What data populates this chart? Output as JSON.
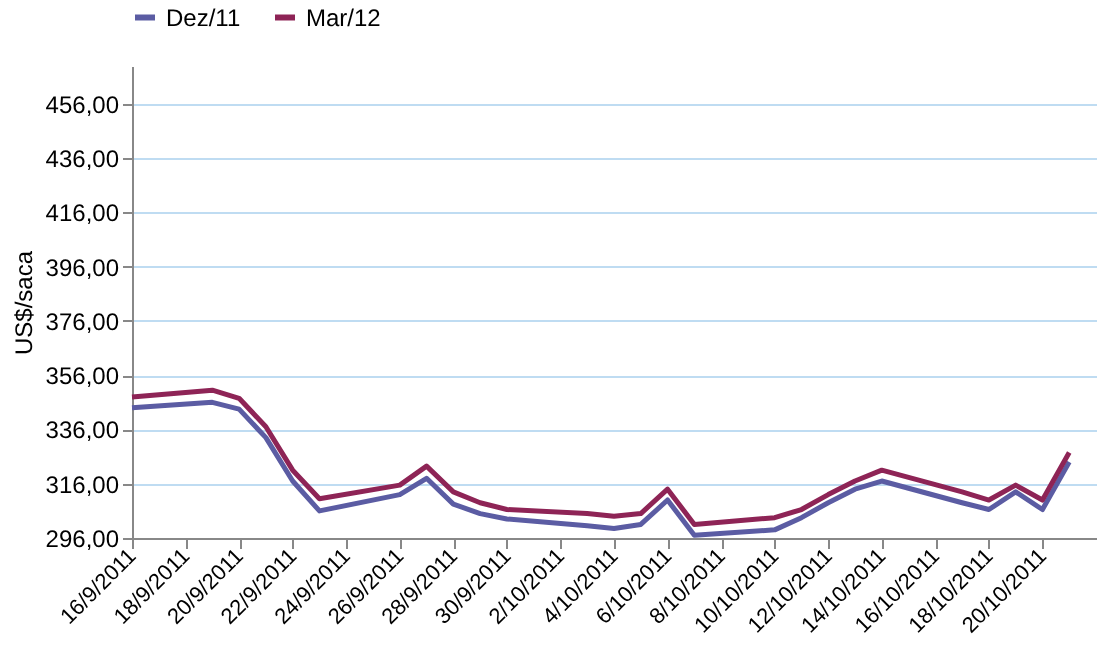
{
  "chart_data": {
    "type": "line",
    "ylabel": "US$/saca",
    "x": [
      "2011-09-16",
      "2011-09-19",
      "2011-09-20",
      "2011-09-21",
      "2011-09-22",
      "2011-09-23",
      "2011-09-26",
      "2011-09-27",
      "2011-09-28",
      "2011-09-29",
      "2011-09-30",
      "2011-10-03",
      "2011-10-04",
      "2011-10-05",
      "2011-10-06",
      "2011-10-07",
      "2011-10-10",
      "2011-10-11",
      "2011-10-12",
      "2011-10-13",
      "2011-10-14",
      "2011-10-17",
      "2011-10-18",
      "2011-10-19",
      "2011-10-20",
      "2011-10-21"
    ],
    "series": [
      {
        "name": "Dez/11",
        "color": "#5b5ca3",
        "values": [
          344,
          346,
          343.5,
          333,
          317,
          306,
          312,
          318,
          308.5,
          305,
          303,
          300.5,
          299.5,
          301,
          310,
          297,
          299,
          303.5,
          309,
          314,
          317,
          309,
          306.5,
          313,
          306.5,
          324
        ]
      },
      {
        "name": "Mar/12",
        "color": "#8e2456",
        "values": [
          348,
          350.5,
          347.5,
          337,
          321,
          310.5,
          315.5,
          322.5,
          313,
          309,
          306.5,
          305,
          304,
          305,
          314,
          301,
          303.5,
          306.5,
          312,
          317,
          321,
          313,
          310,
          315.5,
          310,
          327.5
        ]
      }
    ],
    "xlim": [
      "2011-09-16",
      "2011-10-22"
    ],
    "xticks": [
      {
        "value": "2011-09-16",
        "label": "16/9/2011"
      },
      {
        "value": "2011-09-18",
        "label": "18/9/2011"
      },
      {
        "value": "2011-09-20",
        "label": "20/9/2011"
      },
      {
        "value": "2011-09-22",
        "label": "22/9/2011"
      },
      {
        "value": "2011-09-24",
        "label": "24/9/2011"
      },
      {
        "value": "2011-09-26",
        "label": "26/9/2011"
      },
      {
        "value": "2011-09-28",
        "label": "28/9/2011"
      },
      {
        "value": "2011-09-30",
        "label": "30/9/2011"
      },
      {
        "value": "2011-10-02",
        "label": "2/10/2011"
      },
      {
        "value": "2011-10-04",
        "label": "4/10/2011"
      },
      {
        "value": "2011-10-06",
        "label": "6/10/2011"
      },
      {
        "value": "2011-10-08",
        "label": "8/10/2011"
      },
      {
        "value": "2011-10-10",
        "label": "10/10/2011"
      },
      {
        "value": "2011-10-12",
        "label": "12/10/2011"
      },
      {
        "value": "2011-10-14",
        "label": "14/10/2011"
      },
      {
        "value": "2011-10-16",
        "label": "16/10/2011"
      },
      {
        "value": "2011-10-18",
        "label": "18/10/2011"
      },
      {
        "value": "2011-10-20",
        "label": "20/10/2011"
      }
    ],
    "ylim": [
      296,
      470
    ],
    "yticks": [
      {
        "value": 296,
        "label": "296,00"
      },
      {
        "value": 316,
        "label": "316,00"
      },
      {
        "value": 336,
        "label": "336,00"
      },
      {
        "value": 356,
        "label": "356,00"
      },
      {
        "value": 376,
        "label": "376,00"
      },
      {
        "value": 396,
        "label": "396,00"
      },
      {
        "value": 416,
        "label": "416,00"
      },
      {
        "value": 436,
        "label": "436,00"
      },
      {
        "value": 456,
        "label": "456,00"
      }
    ],
    "grid": "y",
    "legend": "top",
    "marker": "none",
    "line_style": "solid"
  }
}
